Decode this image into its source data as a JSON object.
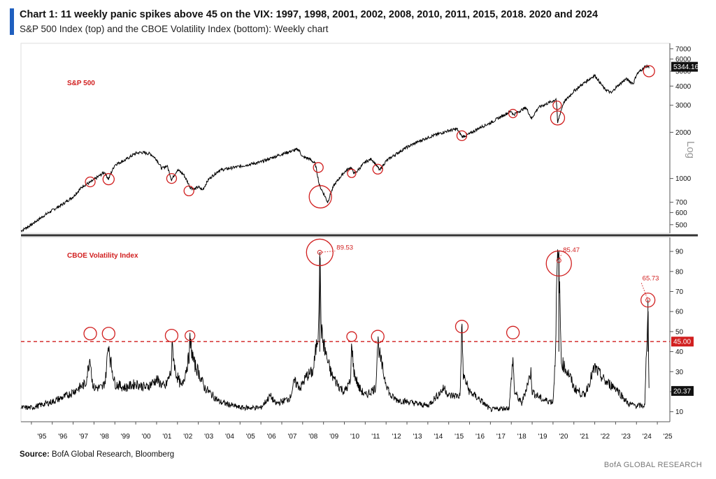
{
  "header": {
    "title": "Chart 1: 11 weekly panic spikes above 45 on the VIX: 1997, 1998, 2001, 2002, 2008, 2010, 2011, 2015, 2018. 2020 and 2024",
    "subtitle": "S&P 500 Index (top) and the CBOE Volatility Index (bottom): Weekly chart"
  },
  "footer": {
    "source_label": "Source:",
    "source_text": "BofA Global Research, Bloomberg",
    "brand": "BofA GLOBAL RESEARCH"
  },
  "colors": {
    "accent": "#1f5fbf",
    "highlight": "#d11f1f",
    "line": "#000000"
  },
  "chart_data": [
    {
      "type": "line",
      "panel": "top",
      "label": "S&P 500",
      "yscale": "log",
      "yaxis_annotation": "Log",
      "yticks": [
        500,
        600,
        700,
        1000,
        2000,
        3000,
        4000,
        5000,
        6000,
        7000
      ],
      "ylim": [
        440,
        7600
      ],
      "xlim": [
        1994.5,
        2025.6
      ],
      "last_value_label": "5344.16",
      "x": [
        1994.5,
        1995.0,
        1995.5,
        1996.0,
        1996.5,
        1997.0,
        1997.5,
        1997.8,
        1998.0,
        1998.5,
        1998.7,
        1999.0,
        1999.5,
        2000.0,
        2000.25,
        2000.7,
        2001.0,
        2001.25,
        2001.5,
        2001.72,
        2002.0,
        2002.3,
        2002.6,
        2002.8,
        2003.0,
        2003.2,
        2003.5,
        2004.0,
        2005.0,
        2006.0,
        2007.0,
        2007.4,
        2007.8,
        2008.0,
        2008.3,
        2008.6,
        2008.8,
        2009.0,
        2009.2,
        2009.5,
        2010.0,
        2010.3,
        2010.5,
        2011.0,
        2011.3,
        2011.7,
        2012.0,
        2013.0,
        2014.0,
        2015.0,
        2015.4,
        2015.65,
        2016.0,
        2016.5,
        2017.0,
        2018.0,
        2018.1,
        2018.7,
        2018.97,
        2019.3,
        2020.0,
        2020.15,
        2020.22,
        2020.5,
        2021.0,
        2022.0,
        2022.45,
        2022.8,
        2023.0,
        2023.5,
        2023.85,
        2024.0,
        2024.3,
        2024.45,
        2024.6
      ],
      "y": [
        455,
        500,
        560,
        620,
        680,
        760,
        900,
        940,
        980,
        1100,
        990,
        1230,
        1320,
        1460,
        1480,
        1450,
        1330,
        1160,
        1210,
        980,
        1140,
        1060,
        880,
        850,
        880,
        840,
        990,
        1130,
        1200,
        1280,
        1440,
        1500,
        1550,
        1380,
        1350,
        1250,
        900,
        800,
        700,
        900,
        1100,
        1180,
        1070,
        1280,
        1340,
        1130,
        1300,
        1600,
        1850,
        2050,
        2100,
        1870,
        1950,
        2150,
        2300,
        2750,
        2600,
        2900,
        2450,
        2900,
        3200,
        3300,
        2300,
        3100,
        3700,
        4700,
        3850,
        3600,
        3900,
        4450,
        4150,
        4750,
        5200,
        5400,
        5344
      ]
    },
    {
      "type": "line",
      "panel": "bottom",
      "label": "CBOE Volatility Index",
      "yticks": [
        10,
        20,
        30,
        40,
        50,
        60,
        70,
        80,
        90
      ],
      "ylim": [
        5,
        97
      ],
      "xlim": [
        1994.5,
        2025.6
      ],
      "threshold": {
        "value": 45,
        "label": "45.00"
      },
      "last_value_label": "20.37",
      "x": [
        1994.5,
        1995.0,
        1996.0,
        1996.7,
        1997.0,
        1997.6,
        1997.82,
        1997.9,
        1998.0,
        1998.4,
        1998.55,
        1998.7,
        1998.78,
        1999.0,
        1999.5,
        2000.0,
        2000.5,
        2001.0,
        2001.4,
        2001.7,
        2001.75,
        2001.9,
        2002.2,
        2002.55,
        2002.6,
        2002.8,
        2003.0,
        2003.3,
        2004.0,
        2005.0,
        2006.0,
        2006.45,
        2006.7,
        2007.0,
        2007.4,
        2007.6,
        2007.9,
        2008.2,
        2008.5,
        2008.75,
        2008.82,
        2008.9,
        2009.0,
        2009.2,
        2009.4,
        2009.8,
        2010.0,
        2010.3,
        2010.35,
        2010.45,
        2010.7,
        2011.0,
        2011.5,
        2011.6,
        2011.7,
        2011.9,
        2012.2,
        2012.5,
        2013.0,
        2014.0,
        2014.8,
        2015.0,
        2015.55,
        2015.63,
        2015.7,
        2016.0,
        2016.5,
        2017.0,
        2017.9,
        2018.08,
        2018.15,
        2018.5,
        2018.95,
        2019.0,
        2019.5,
        2020.0,
        2020.1,
        2020.2,
        2020.28,
        2020.4,
        2020.8,
        2021.0,
        2021.5,
        2022.0,
        2022.5,
        2023.0,
        2023.3,
        2023.6,
        2024.0,
        2024.4,
        2024.55,
        2024.6
      ],
      "y": [
        12,
        12,
        15,
        18,
        20,
        24,
        38,
        26,
        22,
        22,
        26,
        45,
        36,
        24,
        22,
        24,
        22,
        26,
        22,
        30,
        43,
        30,
        22,
        37,
        45,
        34,
        30,
        22,
        15,
        12,
        12,
        18,
        14,
        15,
        17,
        25,
        22,
        28,
        30,
        50,
        89.53,
        50,
        44,
        35,
        28,
        22,
        20,
        25,
        46,
        30,
        22,
        18,
        22,
        46,
        38,
        28,
        18,
        16,
        15,
        13,
        22,
        18,
        18,
        53,
        28,
        20,
        16,
        11,
        12,
        37,
        20,
        14,
        30,
        20,
        16,
        15,
        35,
        82,
        85.47,
        35,
        28,
        22,
        18,
        32,
        25,
        22,
        18,
        14,
        13,
        13,
        65.73,
        20.37
      ]
    }
  ],
  "annotations": {
    "spike_2008": "89.53",
    "spike_2020": "85.47",
    "spike_2024": "65.73"
  },
  "x_ticks": [
    "'95",
    "'96",
    "'97",
    "'98",
    "'99",
    "'00",
    "'01",
    "'02",
    "'03",
    "'04",
    "'05",
    "'06",
    "'07",
    "'08",
    "'09",
    "'10",
    "'11",
    "'12",
    "'13",
    "'14",
    "'15",
    "'16",
    "'17",
    "'18",
    "'19",
    "'20",
    "'21",
    "'22",
    "'23",
    "'24",
    "'25"
  ]
}
